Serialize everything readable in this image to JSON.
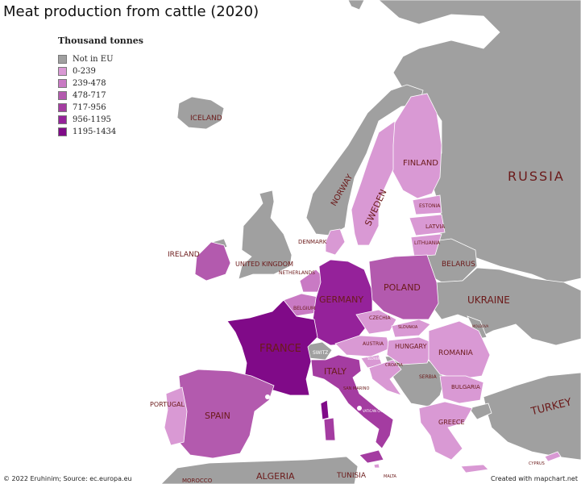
{
  "title": "Meat production from cattle (2020)",
  "legend": {
    "title": "Thousand tonnes",
    "items": [
      {
        "label": "Not in EU",
        "color": "#a0a0a0"
      },
      {
        "label": "0-239",
        "color": "#d999d4"
      },
      {
        "label": "239-478",
        "color": "#c97ac4"
      },
      {
        "label": "478-717",
        "color": "#b35aae"
      },
      {
        "label": "717-956",
        "color": "#a43ca1"
      },
      {
        "label": "956-1195",
        "color": "#95229a"
      },
      {
        "label": "1195-1434",
        "color": "#800a88"
      }
    ]
  },
  "labels": {
    "iceland": "ICELAND",
    "norway": "NORWAY",
    "sweden": "SWEDEN",
    "finland": "FINLAND",
    "russia": "RUSSIA",
    "estonia": "ESTONIA",
    "latvia": "LATVIA",
    "lithuania": "LITHUANIA",
    "denmark": "DENMARK",
    "ireland": "IRELAND",
    "uk": "UNITED KINGDOM",
    "belarus": "BELARUS",
    "netherlands": "NETHERLANDS",
    "poland": "POLAND",
    "germany": "GERMANY",
    "belgium": "BELGIUM",
    "ukraine": "UKRAINE",
    "czechia": "CZECHIA",
    "slovakia": "SLOVAKIA",
    "moldova": "MOLDOVA",
    "france": "FRANCE",
    "austria": "AUSTRIA",
    "hungary": "HUNGARY",
    "romania": "ROMANIA",
    "switz": "SWITZ",
    "slovenia": "SLOVENIA",
    "croatia": "CROATIA",
    "serbia": "SERBIA",
    "italy": "ITALY",
    "san_marino": "SAN MARINO",
    "monaco": "MONACO",
    "bulgaria": "BULGARIA",
    "portugal": "PORTUGAL",
    "spain": "SPAIN",
    "greece": "GREECE",
    "turkey": "TURKEY",
    "vatican": "VATICAN CITY",
    "malta": "MALTA",
    "cyprus": "CYPRUS",
    "algeria": "ALGERIA",
    "tunisia": "TUNISIA",
    "morocco": "MOROCCO"
  },
  "map_data": {
    "unit": "Thousand tonnes",
    "categories": {
      "France": "1195-1434",
      "Germany": "956-1195",
      "Italy": "717-956",
      "Spain": "478-717",
      "Poland": "478-717",
      "Ireland": "478-717",
      "Netherlands": "239-478",
      "Belgium": "239-478",
      "Austria": "0-239",
      "Sweden": "0-239",
      "Finland": "0-239",
      "Denmark": "0-239",
      "Portugal": "0-239",
      "Czechia": "0-239",
      "Slovakia": "0-239",
      "Hungary": "0-239",
      "Romania": "0-239",
      "Bulgaria": "0-239",
      "Greece": "0-239",
      "Croatia": "0-239",
      "Slovenia": "0-239",
      "Estonia": "0-239",
      "Latvia": "0-239",
      "Lithuania": "0-239",
      "Luxembourg": "0-239",
      "Malta": "0-239",
      "Cyprus": "0-239"
    }
  },
  "credits": {
    "left": "© 2022 Eruhinim; Source: ec.europa.eu",
    "right": "Created with mapchart.net"
  }
}
